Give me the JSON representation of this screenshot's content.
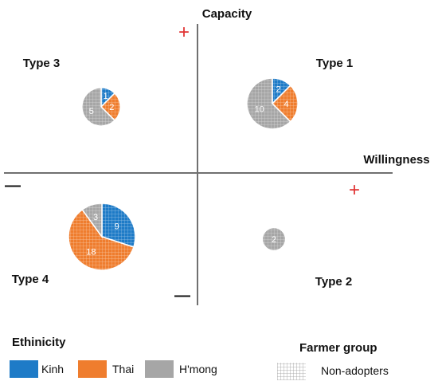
{
  "chart_data": {
    "type": "pie",
    "axes": {
      "x_label": "Willingness",
      "y_label": "Capacity",
      "x_positive": "+",
      "x_negative": "—",
      "y_positive": "+",
      "y_negative": "—"
    },
    "quadrants": [
      {
        "label": "Type 1",
        "slices": [
          {
            "series": "Kinh",
            "value": 2
          },
          {
            "series": "Thai",
            "value": 4
          },
          {
            "series": "H'mong",
            "value": 10
          }
        ]
      },
      {
        "label": "Type 2",
        "slices": [
          {
            "series": "H'mong",
            "value": 2
          }
        ]
      },
      {
        "label": "Type 3",
        "slices": [
          {
            "series": "Kinh",
            "value": 1
          },
          {
            "series": "Thai",
            "value": 2
          },
          {
            "series": "H'mong",
            "value": 5
          }
        ]
      },
      {
        "label": "Type 4",
        "slices": [
          {
            "series": "Kinh",
            "value": 9
          },
          {
            "series": "Thai",
            "value": 18
          },
          {
            "series": "H'mong",
            "value": 3
          }
        ]
      }
    ],
    "legend": {
      "ethnicity_title": "Ethinicity",
      "ethnicity_items": [
        {
          "name": "Kinh",
          "color": "#1e7bc7"
        },
        {
          "name": "Thai",
          "color": "#ef7d2e"
        },
        {
          "name": "H'mong",
          "color": "#a6a6a6"
        }
      ],
      "group_title": "Farmer group",
      "group_items": [
        {
          "name": "Non-adopters",
          "pattern": "grid-hatch"
        }
      ]
    },
    "colors": {
      "Kinh": "#1e7bc7",
      "Thai": "#ef7d2e",
      "H'mong": "#a6a6a6",
      "axis": "#707070",
      "plus_sign": "#e03030"
    }
  }
}
